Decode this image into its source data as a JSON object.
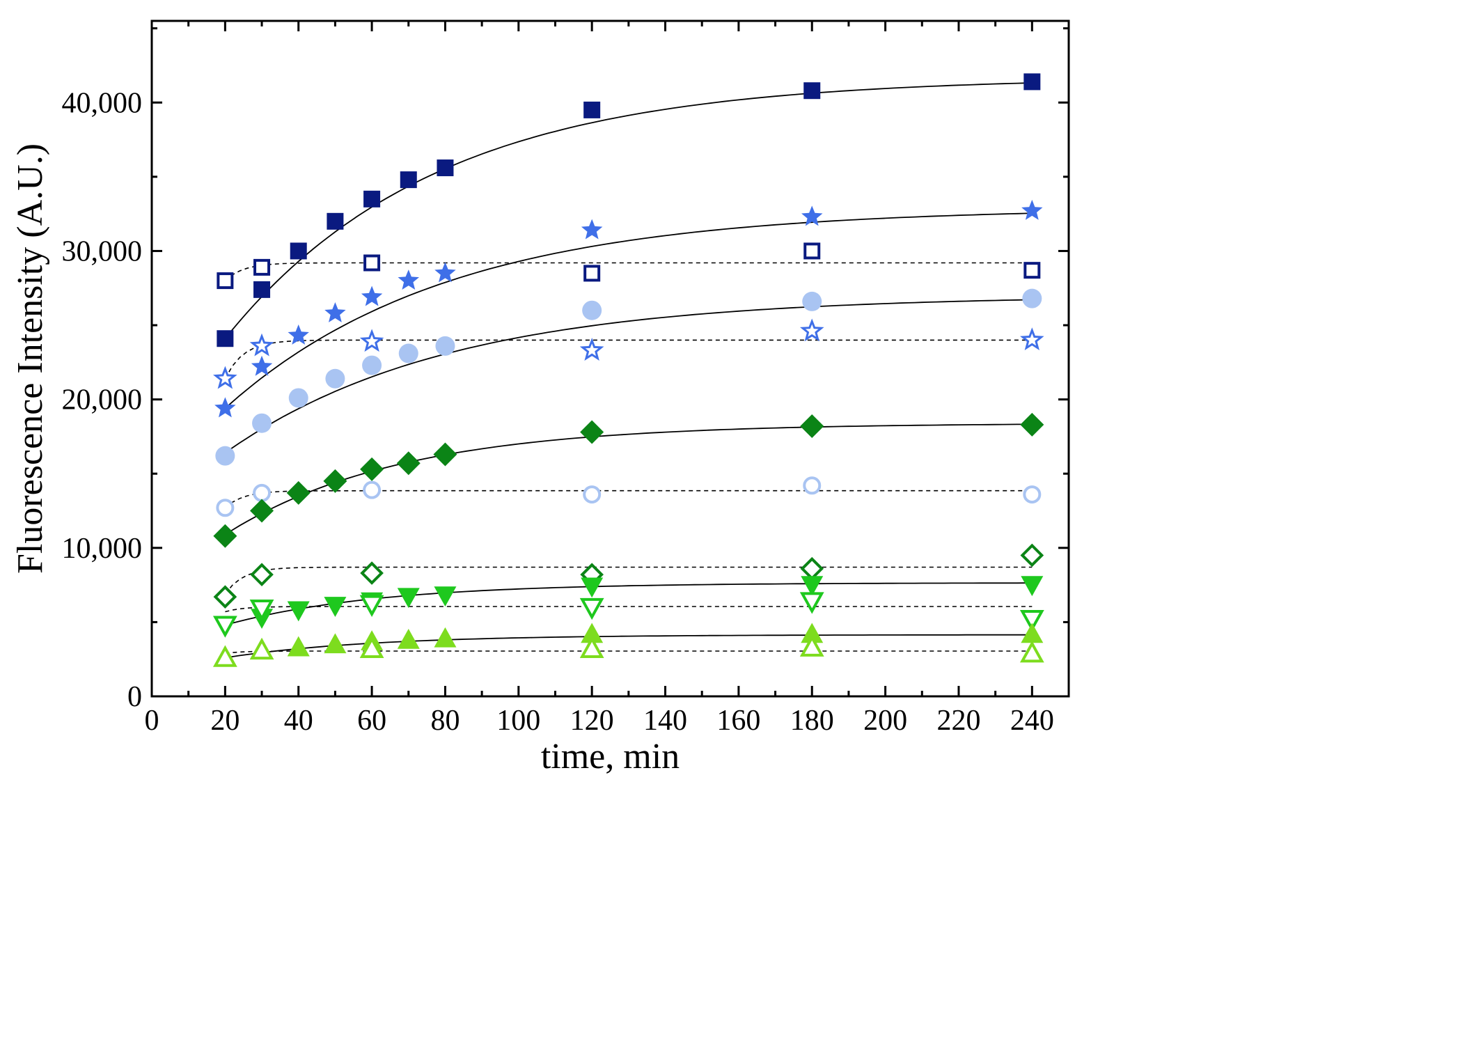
{
  "chart_data": {
    "type": "scatter",
    "title": "",
    "xlabel": "time, min",
    "ylabel": "Fluorescence Intensity (A.U.)",
    "xlim": [
      0,
      250
    ],
    "ylim": [
      0,
      45500
    ],
    "x_ticks": [
      0,
      20,
      40,
      60,
      80,
      100,
      120,
      140,
      160,
      180,
      200,
      220,
      240
    ],
    "x_tick_labels": [
      "0",
      "20",
      "40",
      "60",
      "80",
      "100",
      "120",
      "140",
      "160",
      "180",
      "200",
      "220",
      "240"
    ],
    "y_ticks": [
      0,
      10000,
      20000,
      30000,
      40000
    ],
    "y_tick_labels": [
      "0",
      "10,000",
      "20,000",
      "30,000",
      "40,000"
    ],
    "grid": false,
    "legend": "none",
    "series": [
      {
        "name": "filled-square",
        "marker": "square",
        "filled": true,
        "color": "#0a1a80",
        "fit": "solid",
        "x": [
          20,
          30,
          40,
          50,
          60,
          70,
          80,
          120,
          180,
          240
        ],
        "y": [
          24100,
          27400,
          30000,
          32000,
          33500,
          34800,
          35600,
          39500,
          40800,
          41400
        ],
        "fit_curve": {
          "ymax": 41700,
          "y0": 24100,
          "k": 0.0175
        }
      },
      {
        "name": "open-square",
        "marker": "square",
        "filled": false,
        "color": "#0a1a80",
        "fit": "dashed",
        "x": [
          20,
          30,
          60,
          120,
          180,
          240
        ],
        "y": [
          28000,
          28900,
          29200,
          28500,
          30000,
          28700
        ],
        "fit_curve": {
          "ymax": 29200,
          "y0": 28000,
          "k": 0.2
        }
      },
      {
        "name": "filled-star",
        "marker": "star",
        "filled": true,
        "color": "#3f6fe8",
        "fit": "solid",
        "x": [
          20,
          30,
          40,
          50,
          60,
          70,
          80,
          120,
          180,
          240
        ],
        "y": [
          19400,
          22200,
          24300,
          25800,
          26900,
          28000,
          28500,
          31400,
          32300,
          32700
        ],
        "fit_curve": {
          "ymax": 32900,
          "y0": 19400,
          "k": 0.0165
        }
      },
      {
        "name": "open-star",
        "marker": "star",
        "filled": false,
        "color": "#3f6fe8",
        "fit": "dashed",
        "x": [
          20,
          30,
          60,
          120,
          180,
          240
        ],
        "y": [
          21400,
          23600,
          23900,
          23300,
          24600,
          24000
        ],
        "fit_curve": {
          "ymax": 24000,
          "y0": 21400,
          "k": 0.2
        }
      },
      {
        "name": "filled-circle",
        "marker": "circle",
        "filled": true,
        "color": "#a9c4f2",
        "fit": "solid",
        "x": [
          20,
          30,
          40,
          50,
          60,
          70,
          80,
          120,
          180,
          240
        ],
        "y": [
          16200,
          18400,
          20100,
          21400,
          22300,
          23100,
          23600,
          26000,
          26600,
          26800
        ],
        "fit_curve": {
          "ymax": 27000,
          "y0": 16400,
          "k": 0.0165
        }
      },
      {
        "name": "open-circle",
        "marker": "circle",
        "filled": false,
        "color": "#a9c4f2",
        "fit": "dashed",
        "x": [
          20,
          30,
          60,
          120,
          180,
          240
        ],
        "y": [
          12700,
          13700,
          13900,
          13600,
          14200,
          13600
        ],
        "fit_curve": {
          "ymax": 13850,
          "y0": 12700,
          "k": 0.2
        }
      },
      {
        "name": "filled-diamond",
        "marker": "diamond",
        "filled": true,
        "color": "#0b8416",
        "fit": "solid",
        "x": [
          20,
          30,
          40,
          50,
          60,
          70,
          80,
          120,
          180,
          240
        ],
        "y": [
          10800,
          12500,
          13700,
          14500,
          15300,
          15700,
          16300,
          17800,
          18200,
          18300
        ],
        "fit_curve": {
          "ymax": 18400,
          "y0": 10900,
          "k": 0.021
        }
      },
      {
        "name": "open-diamond",
        "marker": "diamond",
        "filled": false,
        "color": "#0b8416",
        "fit": "dashed",
        "x": [
          20,
          30,
          60,
          120,
          180,
          240
        ],
        "y": [
          6700,
          8200,
          8300,
          8200,
          8600,
          9500
        ],
        "fit_curve": {
          "ymax": 8700,
          "y0": 6900,
          "k": 0.2
        }
      },
      {
        "name": "filled-triangle-down",
        "marker": "triangle-down",
        "filled": true,
        "color": "#1ec81e",
        "fit": "solid",
        "x": [
          20,
          30,
          40,
          50,
          60,
          70,
          80,
          120,
          180,
          240
        ],
        "y": [
          4800,
          5300,
          5800,
          6100,
          6400,
          6700,
          6800,
          7400,
          7500,
          7500
        ],
        "fit_curve": {
          "ymax": 7650,
          "y0": 4800,
          "k": 0.024
        }
      },
      {
        "name": "open-triangle-down",
        "marker": "triangle-down",
        "filled": false,
        "color": "#1ec81e",
        "fit": "dashed",
        "x": [
          20,
          30,
          60,
          120,
          180,
          240
        ],
        "y": [
          4800,
          5900,
          6200,
          6000,
          6400,
          5200
        ],
        "fit_curve": {
          "ymax": 6050,
          "y0": 5700,
          "k": 0.2
        }
      },
      {
        "name": "filled-triangle-up",
        "marker": "triangle-up",
        "filled": true,
        "color": "#7ddc1e",
        "fit": "solid",
        "x": [
          20,
          30,
          40,
          50,
          60,
          70,
          80,
          120,
          180,
          240
        ],
        "y": [
          2600,
          3100,
          3300,
          3500,
          3700,
          3800,
          3900,
          4200,
          4200,
          4200
        ],
        "fit_curve": {
          "ymax": 4150,
          "y0": 2600,
          "k": 0.025
        }
      },
      {
        "name": "open-triangle-up",
        "marker": "triangle-up",
        "filled": false,
        "color": "#7ddc1e",
        "fit": "dashed",
        "x": [
          20,
          30,
          60,
          120,
          180,
          240
        ],
        "y": [
          2600,
          3100,
          3200,
          3200,
          3300,
          2900
        ],
        "fit_curve": {
          "ymax": 3050,
          "y0": 2900,
          "k": 0.2
        }
      }
    ]
  }
}
